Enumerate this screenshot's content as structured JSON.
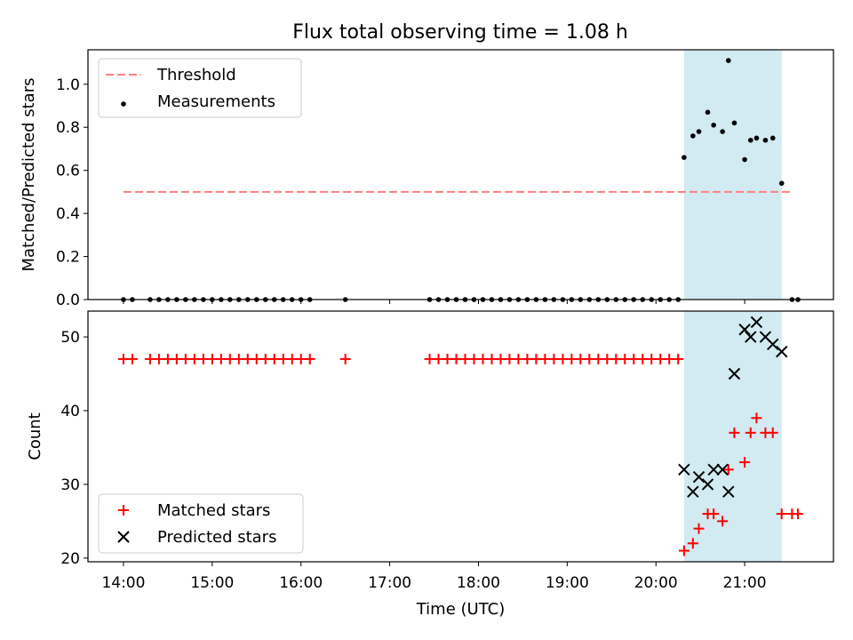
{
  "title": "Flux total observing time = 1.08 h",
  "chart_data": [
    {
      "type": "scatter",
      "ylabel": "Matched/Predicted stars",
      "xlabel": "",
      "xlim": [
        "13:36",
        "22:00"
      ],
      "ylim": [
        0,
        1.16
      ],
      "yticks": [
        "0.0",
        "0.2",
        "0.4",
        "0.6",
        "0.8",
        "1.0"
      ],
      "xticks": [
        "14:00",
        "15:00",
        "16:00",
        "17:00",
        "18:00",
        "19:00",
        "20:00",
        "21:00"
      ],
      "highlight_span": [
        "20:19",
        "21:25"
      ],
      "highlight_color": "#add8e6",
      "legend": {
        "placement": "top-left",
        "entries": [
          {
            "label": "Threshold",
            "marker": "dashed-line",
            "color": "#ff7f7f"
          },
          {
            "label": "Measurements",
            "marker": "dot",
            "color": "#000000"
          }
        ]
      },
      "threshold": {
        "y": 0.5,
        "x": [
          "14:00",
          "21:32"
        ],
        "color": "#ff7f7f"
      },
      "series": [
        {
          "name": "Measurements",
          "color": "#000000",
          "x": [
            "14:00",
            "14:06",
            "14:18",
            "14:24",
            "14:30",
            "14:36",
            "14:42",
            "14:48",
            "14:54",
            "15:00",
            "15:06",
            "15:12",
            "15:18",
            "15:24",
            "15:30",
            "15:36",
            "15:42",
            "15:48",
            "15:54",
            "16:00",
            "16:06",
            "16:30",
            "17:27",
            "17:33",
            "17:39",
            "17:45",
            "17:51",
            "17:57",
            "18:03",
            "18:09",
            "18:15",
            "18:21",
            "18:27",
            "18:33",
            "18:39",
            "18:45",
            "18:51",
            "18:57",
            "19:03",
            "19:09",
            "19:15",
            "19:21",
            "19:27",
            "19:33",
            "19:39",
            "19:45",
            "19:51",
            "19:57",
            "20:03",
            "20:09",
            "20:15",
            "20:19",
            "20:25",
            "20:29",
            "20:35",
            "20:39",
            "20:45",
            "20:49",
            "20:53",
            "21:00",
            "21:04",
            "21:08",
            "21:14",
            "21:19",
            "21:25",
            "21:32",
            "21:36"
          ],
          "y": [
            0,
            0,
            0,
            0,
            0,
            0,
            0,
            0,
            0,
            0,
            0,
            0,
            0,
            0,
            0,
            0,
            0,
            0,
            0,
            0,
            0,
            0,
            0,
            0,
            0,
            0,
            0,
            0,
            0,
            0,
            0,
            0,
            0,
            0,
            0,
            0,
            0,
            0,
            0,
            0,
            0,
            0,
            0,
            0,
            0,
            0,
            0,
            0,
            0,
            0,
            0,
            0.66,
            0.76,
            0.78,
            0.87,
            0.81,
            0.78,
            1.11,
            0.82,
            0.65,
            0.74,
            0.75,
            0.74,
            0.75,
            0.54,
            0,
            0
          ]
        }
      ]
    },
    {
      "type": "scatter",
      "ylabel": "Count",
      "xlabel": "Time (UTC)",
      "xlim": [
        "13:36",
        "22:00"
      ],
      "ylim": [
        19.5,
        53.5
      ],
      "yticks": [
        "20",
        "30",
        "40",
        "50"
      ],
      "xticks": [
        "14:00",
        "15:00",
        "16:00",
        "17:00",
        "18:00",
        "19:00",
        "20:00",
        "21:00"
      ],
      "highlight_span": [
        "20:19",
        "21:25"
      ],
      "highlight_color": "#add8e6",
      "legend": {
        "placement": "bottom-left",
        "entries": [
          {
            "label": "Matched stars",
            "marker": "plus",
            "color": "#ff0000"
          },
          {
            "label": "Predicted stars",
            "marker": "x",
            "color": "#000000"
          }
        ]
      },
      "series": [
        {
          "name": "Matched stars",
          "marker": "plus",
          "color": "#ff0000",
          "x": [
            "14:00",
            "14:06",
            "14:18",
            "14:24",
            "14:30",
            "14:36",
            "14:42",
            "14:48",
            "14:54",
            "15:00",
            "15:06",
            "15:12",
            "15:18",
            "15:24",
            "15:30",
            "15:36",
            "15:42",
            "15:48",
            "15:54",
            "16:00",
            "16:06",
            "16:30",
            "17:27",
            "17:33",
            "17:39",
            "17:45",
            "17:51",
            "17:57",
            "18:03",
            "18:09",
            "18:15",
            "18:21",
            "18:27",
            "18:33",
            "18:39",
            "18:45",
            "18:51",
            "18:57",
            "19:03",
            "19:09",
            "19:15",
            "19:21",
            "19:27",
            "19:33",
            "19:39",
            "19:45",
            "19:51",
            "19:57",
            "20:03",
            "20:09",
            "20:15",
            "20:19",
            "20:25",
            "20:29",
            "20:35",
            "20:39",
            "20:45",
            "20:49",
            "20:53",
            "21:00",
            "21:04",
            "21:08",
            "21:14",
            "21:19",
            "21:25",
            "21:32",
            "21:36"
          ],
          "y": [
            47,
            47,
            47,
            47,
            47,
            47,
            47,
            47,
            47,
            47,
            47,
            47,
            47,
            47,
            47,
            47,
            47,
            47,
            47,
            47,
            47,
            47,
            47,
            47,
            47,
            47,
            47,
            47,
            47,
            47,
            47,
            47,
            47,
            47,
            47,
            47,
            47,
            47,
            47,
            47,
            47,
            47,
            47,
            47,
            47,
            47,
            47,
            47,
            47,
            47,
            47,
            21,
            22,
            24,
            26,
            26,
            25,
            32,
            37,
            33,
            37,
            39,
            37,
            37,
            26,
            26,
            26
          ]
        },
        {
          "name": "Predicted stars",
          "marker": "x",
          "color": "#000000",
          "x": [
            "20:19",
            "20:25",
            "20:29",
            "20:35",
            "20:39",
            "20:45",
            "20:49",
            "20:53",
            "21:00",
            "21:04",
            "21:08",
            "21:14",
            "21:19",
            "21:25"
          ],
          "y": [
            32,
            29,
            31,
            30,
            32,
            32,
            29,
            45,
            51,
            50,
            52,
            50,
            49,
            48
          ]
        }
      ]
    }
  ]
}
